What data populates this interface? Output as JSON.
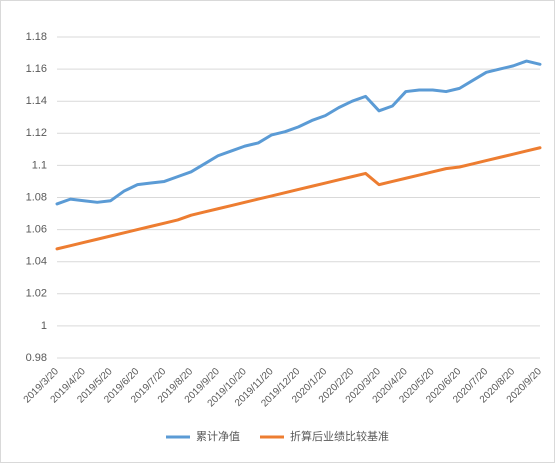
{
  "chart_data": {
    "type": "line",
    "categories": [
      "2019/3/20",
      null,
      "2019/4/20",
      null,
      "2019/5/20",
      null,
      "2019/6/20",
      null,
      "2019/7/20",
      null,
      "2019/8/20",
      null,
      "2019/9/20",
      null,
      "2019/10/20",
      null,
      "2019/11/20",
      null,
      "2019/12/20",
      null,
      "2020/1/20",
      null,
      "2020/2/20",
      null,
      "2020/3/20",
      null,
      "2020/4/20",
      null,
      "2020/5/20",
      null,
      "2020/6/20",
      null,
      "2020/7/20",
      null,
      "2020/8/20",
      null,
      "2020/9/20"
    ],
    "series": [
      {
        "name": "累计净值",
        "color": "#5b9bd5",
        "values": [
          1.076,
          1.079,
          1.078,
          1.077,
          1.078,
          1.084,
          1.088,
          1.089,
          1.09,
          1.093,
          1.096,
          1.101,
          1.106,
          1.109,
          1.112,
          1.114,
          1.119,
          1.121,
          1.124,
          1.128,
          1.131,
          1.136,
          1.14,
          1.143,
          1.134,
          1.137,
          1.146,
          1.147,
          1.147,
          1.146,
          1.148,
          1.153,
          1.158,
          1.16,
          1.162,
          1.165,
          1.163
        ]
      },
      {
        "name": "折算后业绩比较基准",
        "color": "#ed7d31",
        "values": [
          1.048,
          1.05,
          1.052,
          1.054,
          1.056,
          1.058,
          1.06,
          1.062,
          1.064,
          1.066,
          1.069,
          1.071,
          1.073,
          1.075,
          1.077,
          1.079,
          1.081,
          1.083,
          1.085,
          1.087,
          1.089,
          1.091,
          1.093,
          1.095,
          1.088,
          1.09,
          1.092,
          1.094,
          1.096,
          1.098,
          1.099,
          1.101,
          1.103,
          1.105,
          1.107,
          1.109,
          1.111
        ]
      }
    ],
    "ylim": [
      0.98,
      1.18
    ],
    "yticks": [
      0.98,
      1,
      1.02,
      1.04,
      1.06,
      1.08,
      1.1,
      1.12,
      1.14,
      1.16,
      1.18
    ],
    "grid": true,
    "legend": "bottom"
  }
}
